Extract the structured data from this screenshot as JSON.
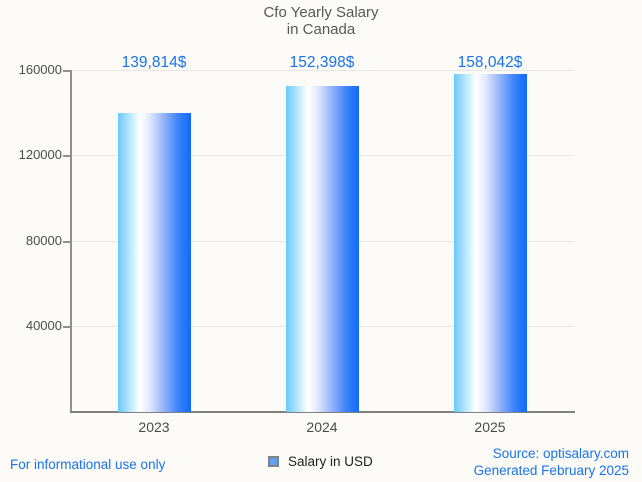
{
  "title": {
    "line1": "Cfo Yearly Salary",
    "line2": "in Canada"
  },
  "chart_data": {
    "type": "bar",
    "categories": [
      "2023",
      "2024",
      "2025"
    ],
    "values": [
      139814,
      152398,
      158042
    ],
    "value_labels": [
      "139,814$",
      "152,398$",
      "158,042$"
    ],
    "series": [
      {
        "name": "Salary in USD",
        "values": [
          139814,
          152398,
          158042
        ]
      }
    ],
    "title": "Cfo Yearly Salary in Canada",
    "xlabel": "",
    "ylabel": "",
    "ylim": [
      0,
      160000
    ],
    "ytick_values": [
      40000,
      80000,
      120000,
      160000
    ],
    "ytick_labels": [
      "40000",
      "80000",
      "120000",
      "160000"
    ],
    "grid": true,
    "legend_position": "bottom"
  },
  "legend": {
    "label": "Salary in USD"
  },
  "footer": {
    "disclaimer": "For informational use only",
    "source_line1": "Source: optisalary.com",
    "source_line2": "Generated February 2025"
  },
  "colors": {
    "accent_blue": "#1a73e8",
    "bar_gradient_start": "#69c8fb",
    "bar_gradient_mid": "#ffffff",
    "bar_gradient_end": "#0e6afb",
    "legend_marker_fill": "#61a0f2",
    "grid": "#e6e6e6",
    "axis": "#8f8f8f",
    "tick_text": "#4c4c4c",
    "title_text": "#585858",
    "background": "#fcfbf7"
  }
}
